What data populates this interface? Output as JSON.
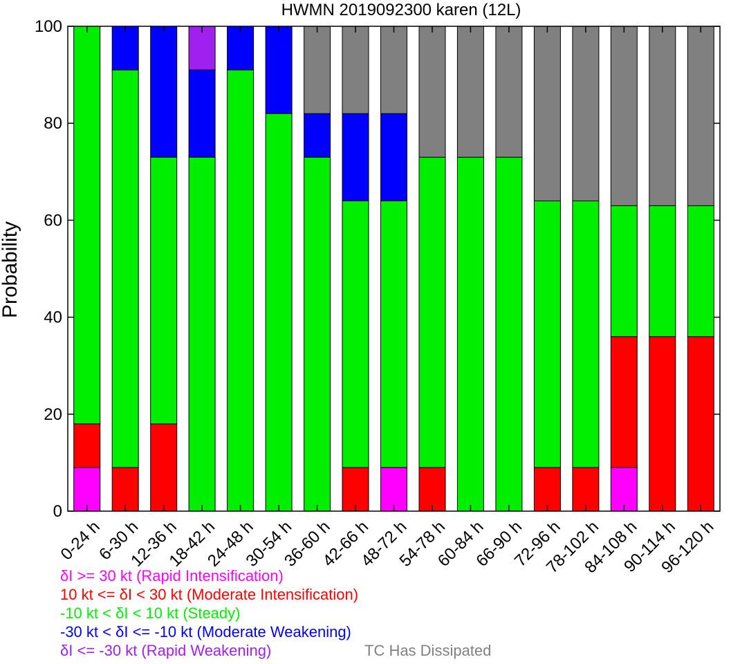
{
  "chart_data": {
    "type": "bar",
    "stacked": true,
    "title": "HWMN 2019092300 karen (12L)",
    "xlabel": "",
    "ylabel": "Probability",
    "ylim": [
      0,
      100
    ],
    "yticks": [
      0,
      20,
      40,
      60,
      80,
      100
    ],
    "grid": false,
    "categories": [
      "0-24 h",
      "6-30 h",
      "12-36 h",
      "18-42 h",
      "24-48 h",
      "30-54 h",
      "36-60 h",
      "42-66 h",
      "48-72 h",
      "54-78 h",
      "60-84 h",
      "66-90 h",
      "72-96 h",
      "78-102 h",
      "84-108 h",
      "90-114 h",
      "96-120 h"
    ],
    "series": [
      {
        "name": "Rapid Intensification",
        "color": "#ff00ff",
        "values": [
          9,
          0,
          0,
          0,
          0,
          0,
          0,
          0,
          9,
          0,
          0,
          0,
          0,
          0,
          9,
          0,
          0
        ]
      },
      {
        "name": "Moderate Intensification",
        "color": "#ff0000",
        "values": [
          9,
          9,
          18,
          0,
          0,
          0,
          0,
          9,
          0,
          9,
          0,
          0,
          9,
          9,
          27,
          36,
          36
        ]
      },
      {
        "name": "Steady",
        "color": "#00ee00",
        "values": [
          82,
          82,
          55,
          73,
          91,
          82,
          73,
          55,
          55,
          64,
          73,
          73,
          55,
          55,
          27,
          27,
          27
        ]
      },
      {
        "name": "Moderate Weakening",
        "color": "#0000ff",
        "values": [
          0,
          9,
          27,
          18,
          9,
          18,
          9,
          18,
          18,
          0,
          0,
          0,
          0,
          0,
          0,
          0,
          0
        ]
      },
      {
        "name": "Rapid Weakening",
        "color": "#a020f0",
        "values": [
          0,
          0,
          0,
          9,
          0,
          0,
          0,
          0,
          0,
          0,
          0,
          0,
          0,
          0,
          0,
          0,
          0
        ]
      },
      {
        "name": "TC Has Dissipated",
        "color": "#808080",
        "values": [
          0,
          0,
          0,
          0,
          0,
          0,
          18,
          18,
          18,
          27,
          27,
          27,
          36,
          36,
          37,
          37,
          37
        ]
      }
    ],
    "legend": [
      {
        "text": "δI >= 30 kt (Rapid Intensification)",
        "color": "#ff00ff"
      },
      {
        "text": "10 kt <= δI < 30 kt (Moderate Intensification)",
        "color": "#ff0000"
      },
      {
        "text": "-10 kt < δI < 10 kt (Steady)",
        "color": "#00ee00"
      },
      {
        "text": "-30 kt < δI <= -10 kt (Moderate Weakening)",
        "color": "#0000ff"
      },
      {
        "text": "δI <= -30 kt (Rapid Weakening)",
        "color": "#a020f0"
      },
      {
        "text": "TC Has Dissipated",
        "color": "#808080"
      }
    ],
    "legend_position": "bottom-left"
  }
}
